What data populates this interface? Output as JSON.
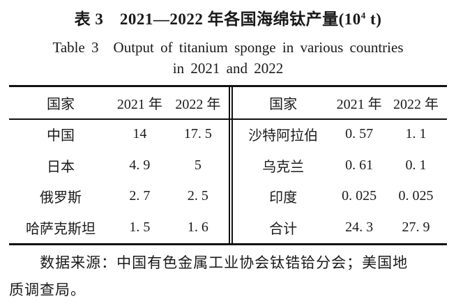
{
  "title": {
    "zh_prefix": "表 3　2021—2022 年各国海绵钛产量(10",
    "zh_sup": "4",
    "zh_suffix": " t)",
    "en_line1": "Table 3　Output of titanium sponge in various countries",
    "en_line2": "in 2021 and 2022"
  },
  "table": {
    "left": {
      "headers": [
        "国家",
        "2021 年",
        "2022 年"
      ],
      "rows": [
        [
          "中国",
          "14",
          "17. 5"
        ],
        [
          "日本",
          "4. 9",
          "5"
        ],
        [
          "俄罗斯",
          "2. 7",
          "2. 5"
        ],
        [
          "哈萨克斯坦",
          "1. 5",
          "1. 6"
        ]
      ]
    },
    "right": {
      "headers": [
        "国家",
        "2021 年",
        "2022 年"
      ],
      "rows": [
        [
          "沙特阿拉伯",
          "0. 57",
          "1. 1"
        ],
        [
          "乌克兰",
          "0. 61",
          "0. 1"
        ],
        [
          "印度",
          "0. 025",
          "0. 025"
        ],
        [
          "合计",
          "24. 3",
          "27. 9"
        ]
      ]
    }
  },
  "footnote": {
    "line1": "数据来源：中国有色金属工业协会钛锆铪分会；美国地",
    "line2": "质调查局。"
  },
  "colors": {
    "text": "#1a1a1a",
    "rule": "#111111",
    "background": "#ffffff"
  },
  "chart_data": {
    "type": "table",
    "title": "表3 2021—2022年各国海绵钛产量(10^4 t)",
    "title_en": "Table 3 Output of titanium sponge in various countries in 2021 and 2022",
    "unit": "10^4 t",
    "columns": [
      "国家",
      "2021年",
      "2022年"
    ],
    "rows": [
      {
        "country": "中国",
        "y2021": 14,
        "y2022": 17.5
      },
      {
        "country": "日本",
        "y2021": 4.9,
        "y2022": 5
      },
      {
        "country": "俄罗斯",
        "y2021": 2.7,
        "y2022": 2.5
      },
      {
        "country": "哈萨克斯坦",
        "y2021": 1.5,
        "y2022": 1.6
      },
      {
        "country": "沙特阿拉伯",
        "y2021": 0.57,
        "y2022": 1.1
      },
      {
        "country": "乌克兰",
        "y2021": 0.61,
        "y2022": 0.1
      },
      {
        "country": "印度",
        "y2021": 0.025,
        "y2022": 0.025
      },
      {
        "country": "合计",
        "y2021": 24.3,
        "y2022": 27.9
      }
    ],
    "source": "数据来源：中国有色金属工业协会钛锆铪分会；美国地质调查局。"
  }
}
